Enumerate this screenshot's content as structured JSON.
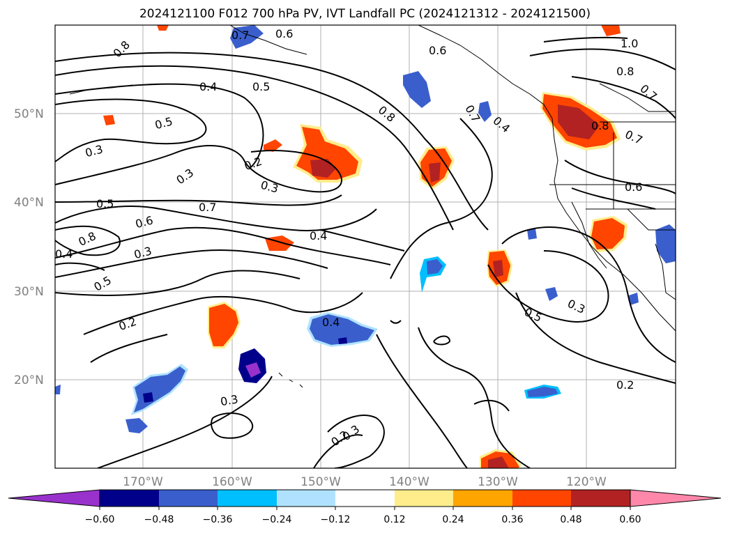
{
  "title": "2024121100 F012 700 hPa PV, IVT Landfall PC (2024121312 - 2024121500)",
  "map": {
    "lat_labels": [
      "50°N",
      "40°N",
      "30°N",
      "20°N"
    ],
    "lon_labels": [
      "170°W",
      "160°W",
      "150°W",
      "140°W",
      "130°W",
      "120°W"
    ]
  },
  "colorbar": {
    "ticks": [
      "−0.60",
      "−0.48",
      "−0.36",
      "−0.24",
      "−0.12",
      "0.12",
      "0.24",
      "0.36",
      "0.48",
      "0.60"
    ],
    "colors": [
      "#9932CC",
      "#00008B",
      "#3a5fcd",
      "#00BFFF",
      "#B0E2FF",
      "#FFFFFF",
      "#FFEC8B",
      "#FFA500",
      "#FF4500",
      "#B22222",
      "#FF88AA"
    ]
  },
  "contour_labels": [
    "0.8",
    "0.6",
    "0.6",
    "1.0",
    "0.8",
    "0.7",
    "0.4",
    "0.5",
    "0.5",
    "0.3",
    "0.2",
    "0.3",
    "0.5",
    "0.7",
    "0.6",
    "0.3",
    "0.8",
    "0.4",
    "0.8",
    "0.7",
    "0.4",
    "0.8",
    "0.7",
    "0.6",
    "0.5",
    "0.3",
    "0.2",
    "0.2",
    "0.4",
    "0.3",
    "0.5",
    "0.3",
    "0.2",
    "0.3",
    "0.4",
    "0.7"
  ]
}
